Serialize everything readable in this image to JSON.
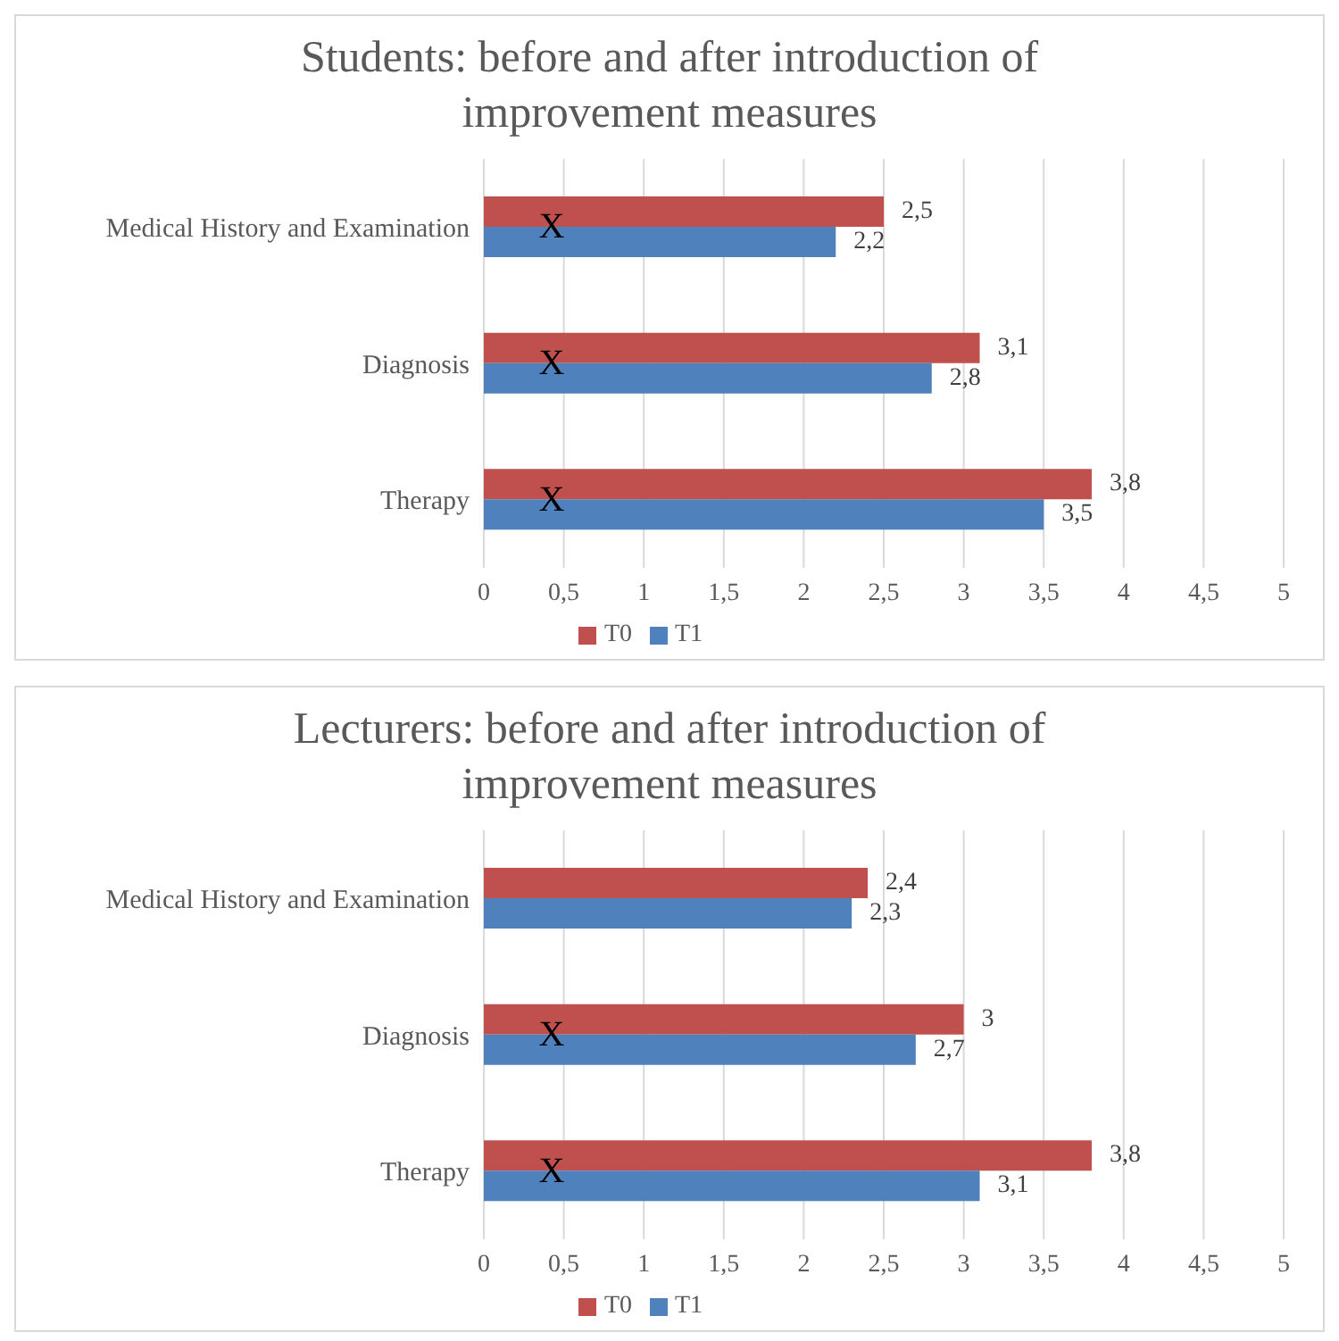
{
  "chart_data": [
    {
      "type": "bar",
      "orientation": "horizontal",
      "title": "Students: before and after introduction of improvement measures",
      "categories": [
        "Medical History and Examination",
        "Diagnosis",
        "Therapy"
      ],
      "series": [
        {
          "name": "T0",
          "color": "#c0504d",
          "values": [
            2.5,
            3.1,
            3.8
          ],
          "value_labels": [
            "2,5",
            "3,1",
            "3,8"
          ]
        },
        {
          "name": "T1",
          "color": "#4f81bd",
          "values": [
            2.2,
            2.8,
            3.5
          ],
          "value_labels": [
            "2,2",
            "2,8",
            "3,5"
          ]
        }
      ],
      "xlim": [
        0,
        5
      ],
      "xticks": [
        0,
        {
          "value": 0.5,
          "label": "0,5"
        },
        1,
        {
          "value": 1.5,
          "label": "1,5"
        },
        2,
        {
          "value": 2.5,
          "label": "2,5"
        },
        3,
        {
          "value": 3.5,
          "label": "3,5"
        },
        4,
        {
          "value": 4.5,
          "label": "4,5"
        },
        5
      ],
      "grid": "x",
      "legend": "bottom",
      "annotations": [
        {
          "text": "X",
          "y": "Medical History and Examination"
        },
        {
          "text": "X",
          "y": "Diagnosis"
        },
        {
          "text": "X",
          "y": "Therapy"
        }
      ]
    },
    {
      "type": "bar",
      "orientation": "horizontal",
      "title": "Lecturers: before and after introduction of improvement measures",
      "categories": [
        "Medical History and Examination",
        "Diagnosis",
        "Therapy"
      ],
      "series": [
        {
          "name": "T0",
          "color": "#c0504d",
          "values": [
            2.4,
            3,
            3.8
          ],
          "value_labels": [
            "2,4",
            "3",
            "3,8"
          ]
        },
        {
          "name": "T1",
          "color": "#4f81bd",
          "values": [
            2.3,
            2.7,
            3.1
          ],
          "value_labels": [
            "2,3",
            "2,7",
            "3,1"
          ]
        }
      ],
      "xlim": [
        0,
        5
      ],
      "xticks": [
        0,
        {
          "value": 0.5,
          "label": "0,5"
        },
        1,
        {
          "value": 1.5,
          "label": "1,5"
        },
        2,
        {
          "value": 2.5,
          "label": "2,5"
        },
        3,
        {
          "value": 3.5,
          "label": "3,5"
        },
        4,
        {
          "value": 4.5,
          "label": "4,5"
        },
        5
      ],
      "grid": "x",
      "legend": "bottom",
      "annotations": [
        {
          "text": "X",
          "y": "Diagnosis"
        },
        {
          "text": "X",
          "y": "Therapy"
        }
      ]
    }
  ]
}
